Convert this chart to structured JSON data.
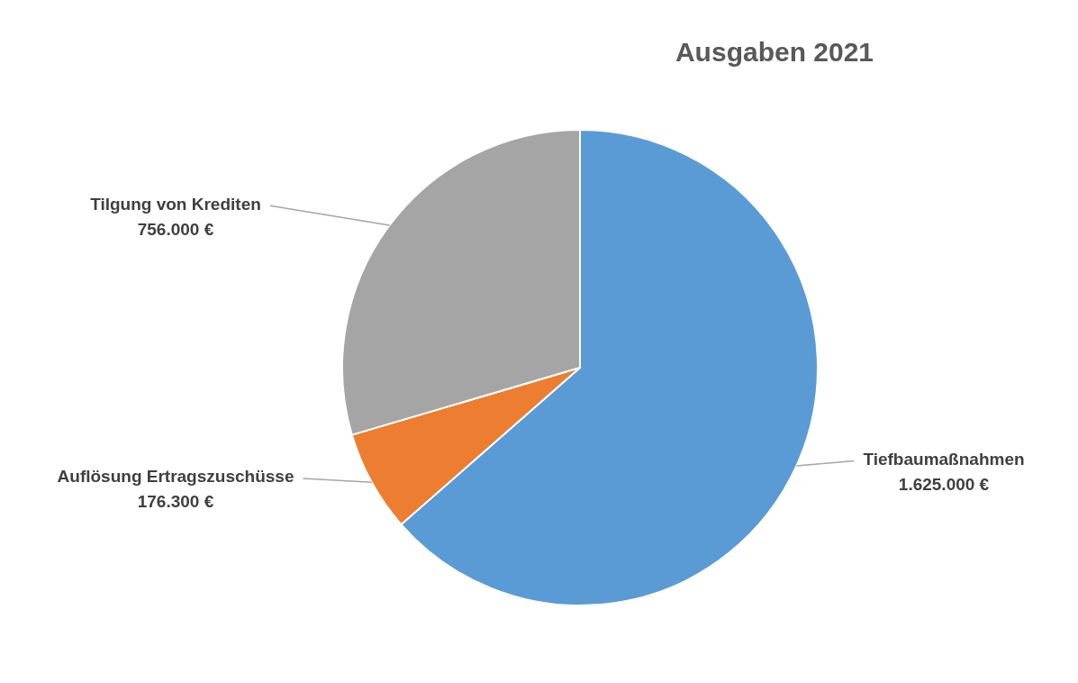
{
  "chart_data": {
    "type": "pie",
    "title": "Ausgaben 2021",
    "categories": [
      "Tiefbaumaßnahmen",
      "Auflösung Ertragszuschüsse",
      "Tilgung von Krediten"
    ],
    "values": [
      1625000,
      176300,
      756000
    ],
    "value_labels": [
      "1.625.000 €",
      "176.300 €",
      "756.000 €"
    ],
    "colors": [
      "#5b9bd5",
      "#ed7d31",
      "#a5a5a5"
    ],
    "legend": false
  }
}
